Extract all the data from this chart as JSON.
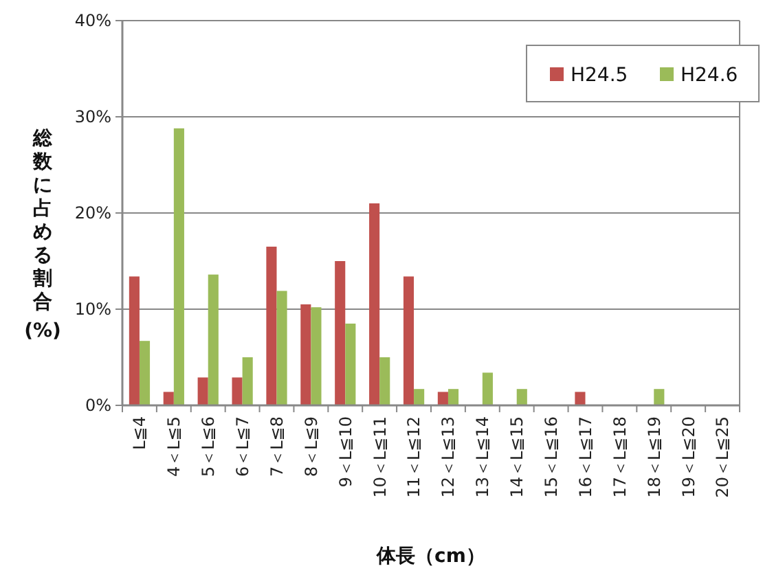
{
  "chart_data": {
    "type": "bar",
    "xlabel": "体長（cm）",
    "ylabel": "総数に占める割合(%)",
    "categories": [
      "L≦4",
      "4＜L≦5",
      "5＜L≦6",
      "6＜L≦7",
      "7＜L≦8",
      "8＜L≦9",
      "9＜L≦10",
      "10＜L≦11",
      "11＜L≦12",
      "12＜L≦13",
      "13＜L≦14",
      "14＜L≦15",
      "15＜L≦16",
      "16＜L≦17",
      "17＜L≦18",
      "18＜L≦19",
      "19＜L≦20",
      "20＜L≦25"
    ],
    "series": [
      {
        "name": "H24.5",
        "color": "#c0504d",
        "values": [
          13.4,
          1.4,
          2.9,
          2.9,
          16.5,
          10.5,
          15.0,
          21.0,
          13.4,
          1.4,
          0,
          0,
          0,
          1.4,
          0,
          0,
          0,
          0
        ]
      },
      {
        "name": "H24.6",
        "color": "#9bbb59",
        "values": [
          6.7,
          28.8,
          13.6,
          5.0,
          11.9,
          10.2,
          8.5,
          5.0,
          1.7,
          1.7,
          3.4,
          1.7,
          0,
          0,
          0,
          1.7,
          0,
          0
        ]
      }
    ],
    "ylim": [
      0,
      40
    ],
    "yticks": [
      {
        "value": 0,
        "label": "0%"
      },
      {
        "value": 10,
        "label": "10%"
      },
      {
        "value": 20,
        "label": "20%"
      },
      {
        "value": 30,
        "label": "30%"
      },
      {
        "value": 40,
        "label": "40%"
      }
    ],
    "grid": "y",
    "legend": "top right"
  }
}
